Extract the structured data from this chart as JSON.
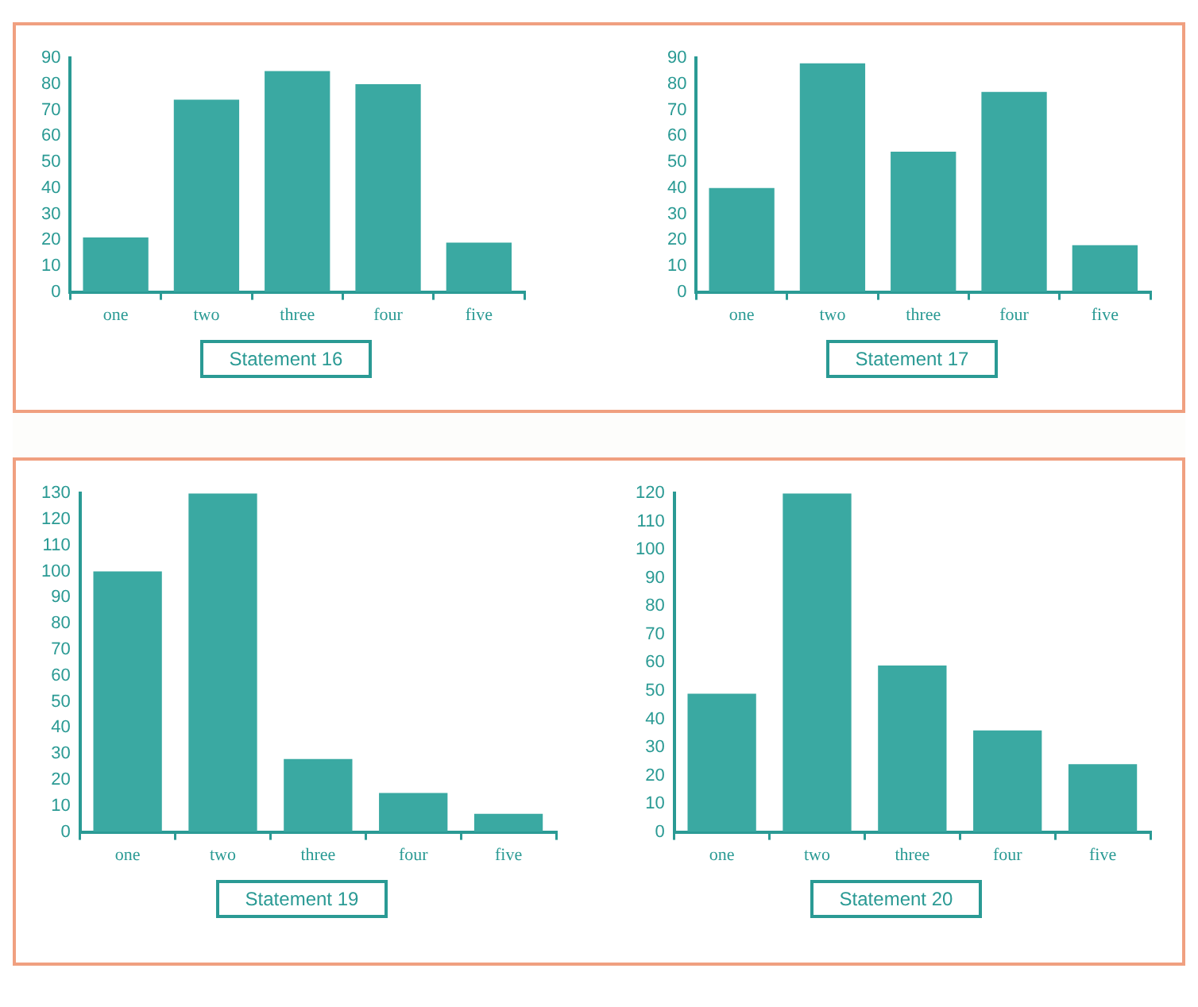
{
  "chart_data": [
    {
      "type": "bar",
      "title": "Statement 16",
      "categories": [
        "one",
        "two",
        "three",
        "four",
        "five"
      ],
      "values": [
        21,
        74,
        85,
        80,
        19
      ],
      "color": "#3aa9a2",
      "ylim": [
        0,
        90
      ],
      "yticks": [
        0,
        10,
        20,
        30,
        40,
        50,
        60,
        70,
        80,
        90
      ],
      "grid": false,
      "legend": false
    },
    {
      "type": "bar",
      "title": "Statement 17",
      "categories": [
        "one",
        "two",
        "three",
        "four",
        "five"
      ],
      "values": [
        40,
        88,
        54,
        77,
        18
      ],
      "color": "#3aa9a2",
      "ylim": [
        0,
        90
      ],
      "yticks": [
        0,
        10,
        20,
        30,
        40,
        50,
        60,
        70,
        80,
        90
      ],
      "grid": false,
      "legend": false
    },
    {
      "type": "bar",
      "title": "Statement 19",
      "categories": [
        "one",
        "two",
        "three",
        "four",
        "five"
      ],
      "values": [
        100,
        130,
        28,
        15,
        7
      ],
      "color": "#3aa9a2",
      "ylim": [
        0,
        130
      ],
      "yticks": [
        0,
        10,
        20,
        30,
        40,
        50,
        60,
        70,
        80,
        90,
        100,
        110,
        120,
        130
      ],
      "grid": false,
      "legend": false
    },
    {
      "type": "bar",
      "title": "Statement 20",
      "categories": [
        "one",
        "two",
        "three",
        "four",
        "five"
      ],
      "values": [
        49,
        120,
        59,
        36,
        24
      ],
      "color": "#3aa9a2",
      "ylim": [
        0,
        120
      ],
      "yticks": [
        0,
        10,
        20,
        30,
        40,
        50,
        60,
        70,
        80,
        90,
        100,
        110,
        120
      ],
      "grid": false,
      "legend": false
    }
  ]
}
